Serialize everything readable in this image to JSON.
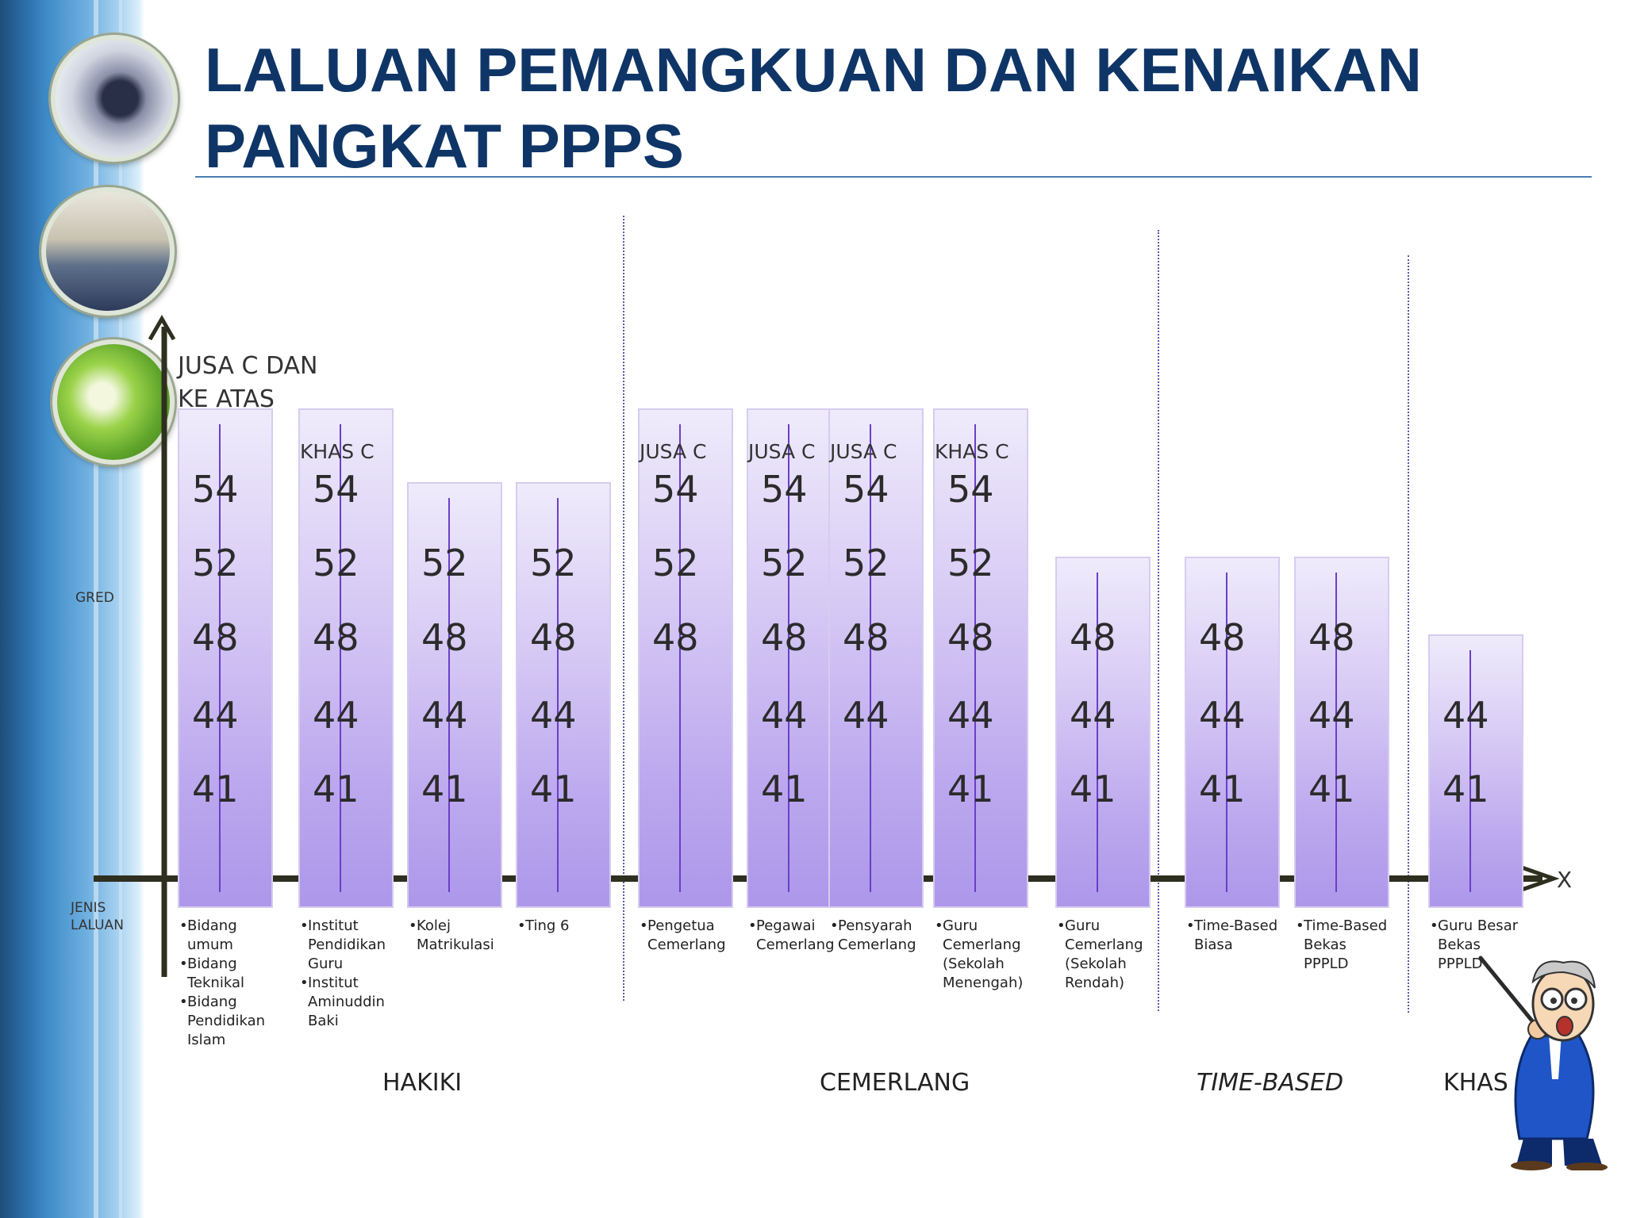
{
  "title": "LALUAN PEMANGKUAN DAN KENAIKAN PANGKAT PPPS",
  "axis": {
    "y_label": "GRED",
    "x_label": "JENIS LALUAN",
    "x_marker": "X",
    "top_label": "JUSA  C DAN KE ATAS"
  },
  "columns": [
    {
      "top_label": "",
      "grades": [
        "54",
        "52",
        "48",
        "44",
        "41"
      ],
      "route": [
        "Bidang  umum",
        "Bidang Teknikal",
        "Bidang Pendidikan Islam"
      ]
    },
    {
      "top_label": "KHAS C",
      "grades": [
        "54",
        "52",
        "48",
        "44",
        "41"
      ],
      "route": [
        "Institut Pendidikan Guru",
        "Institut Aminuddin Baki"
      ]
    },
    {
      "top_label": "",
      "grades": [
        "52",
        "48",
        "44",
        "41"
      ],
      "route": [
        "Kolej Matrikulasi"
      ]
    },
    {
      "top_label": "",
      "grades": [
        "52",
        "48",
        "44",
        "41"
      ],
      "route": [
        "Ting 6"
      ]
    },
    {
      "top_label": "JUSA C",
      "grades": [
        "54",
        "52",
        "48"
      ],
      "route": [
        "Pengetua Cemerlang"
      ]
    },
    {
      "top_label": "JUSA C",
      "grades": [
        "54",
        "52",
        "48",
        "44",
        "41"
      ],
      "route": [
        "Pegawai Cemerlang"
      ]
    },
    {
      "top_label": "JUSA C",
      "grades": [
        "54",
        "52",
        "48",
        "44"
      ],
      "route": [
        "Pensyarah Cemerlang"
      ]
    },
    {
      "top_label": "KHAS C",
      "grades": [
        "54",
        "52",
        "48",
        "44",
        "41"
      ],
      "route": [
        "Guru Cemerlang (Sekolah Menengah)"
      ]
    },
    {
      "top_label": "",
      "grades": [
        "48",
        "44",
        "41"
      ],
      "route": [
        "Guru Cemerlang (Sekolah Rendah)"
      ]
    },
    {
      "top_label": "",
      "grades": [
        "48",
        "44",
        "41"
      ],
      "route": [
        "Time-Based Biasa"
      ]
    },
    {
      "top_label": "",
      "grades": [
        "48",
        "44",
        "41"
      ],
      "route": [
        "Time-Based Bekas  PPPLD"
      ]
    },
    {
      "top_label": "",
      "grades": [
        "44",
        "41"
      ],
      "route": [
        "Guru Besar Bekas PPPLD"
      ]
    }
  ],
  "groups": [
    "HAKIKI",
    "CEMERLANG",
    "TIME-BASED",
    "KHAS"
  ]
}
